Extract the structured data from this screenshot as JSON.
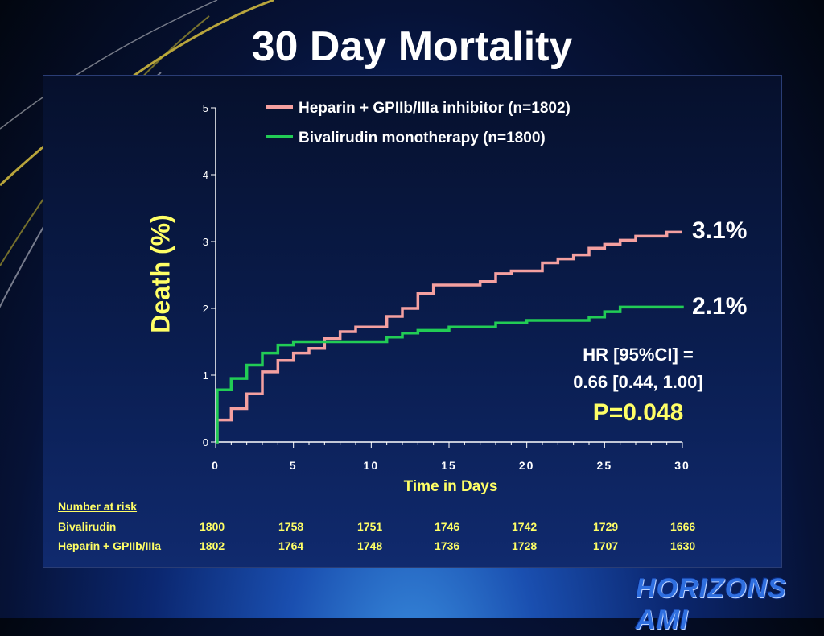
{
  "slide": {
    "title": "30 Day Mortality",
    "logo_text": "HORIZONS AMI"
  },
  "annotations": {
    "heparin_end": "3.1%",
    "bival_end": "2.1%",
    "hr_line1": "HR [95%CI] =",
    "hr_line2": "0.66 [0.44, 1.00]",
    "p_value": "P=0.048"
  },
  "risk_table": {
    "title": "Number at risk",
    "rows": [
      {
        "label": "Bivalirudin",
        "values": [
          "1800",
          "1758",
          "1751",
          "1746",
          "1742",
          "1729",
          "1666"
        ]
      },
      {
        "label": "Heparin + GPIIb/IIIa",
        "values": [
          "1802",
          "1764",
          "1748",
          "1736",
          "1728",
          "1707",
          "1630"
        ]
      }
    ]
  },
  "colors": {
    "heparin": "#f4a0a0",
    "bivalirudin": "#22cc55",
    "axis_text": "#ffffff",
    "label_yellow": "#ffff66"
  },
  "chart_data": {
    "type": "line",
    "step": true,
    "title": "30 Day Mortality",
    "xlabel": "Time in Days",
    "ylabel": "Death (%)",
    "xlim": [
      0,
      30
    ],
    "ylim": [
      0,
      5
    ],
    "xticks": [
      0,
      5,
      10,
      15,
      20,
      25,
      30
    ],
    "yticks": [
      0,
      1,
      2,
      3,
      4,
      5
    ],
    "legend_position": "top",
    "series": [
      {
        "name": "Heparin + GPIIb/IIIa inhibitor (n=1802)",
        "color": "#f4a0a0",
        "x": [
          0,
          0.1,
          1,
          2,
          3,
          4,
          5,
          6,
          7,
          8,
          9,
          10,
          11,
          12,
          13,
          14,
          15,
          16,
          17,
          18,
          19,
          20,
          21,
          22,
          23,
          24,
          25,
          26,
          27,
          28,
          29,
          30
        ],
        "y": [
          0,
          0.33,
          0.5,
          0.72,
          1.05,
          1.22,
          1.33,
          1.4,
          1.55,
          1.65,
          1.72,
          1.72,
          1.88,
          2.0,
          2.22,
          2.35,
          2.35,
          2.35,
          2.4,
          2.52,
          2.56,
          2.56,
          2.68,
          2.74,
          2.8,
          2.9,
          2.96,
          3.02,
          3.08,
          3.08,
          3.14,
          3.14
        ]
      },
      {
        "name": "Bivalirudin monotherapy (n=1800)",
        "color": "#22cc55",
        "x": [
          0,
          0.1,
          1,
          2,
          3,
          4,
          5,
          6,
          7,
          8,
          9,
          10,
          11,
          12,
          13,
          14,
          15,
          16,
          17,
          18,
          19,
          20,
          21,
          22,
          23,
          24,
          25,
          26,
          27,
          28,
          29,
          30
        ],
        "y": [
          0,
          0.78,
          0.95,
          1.15,
          1.33,
          1.45,
          1.5,
          1.5,
          1.5,
          1.5,
          1.5,
          1.5,
          1.57,
          1.63,
          1.67,
          1.67,
          1.72,
          1.72,
          1.72,
          1.78,
          1.78,
          1.82,
          1.82,
          1.82,
          1.82,
          1.87,
          1.95,
          2.02,
          2.02,
          2.02,
          2.02,
          2.04
        ]
      }
    ]
  }
}
